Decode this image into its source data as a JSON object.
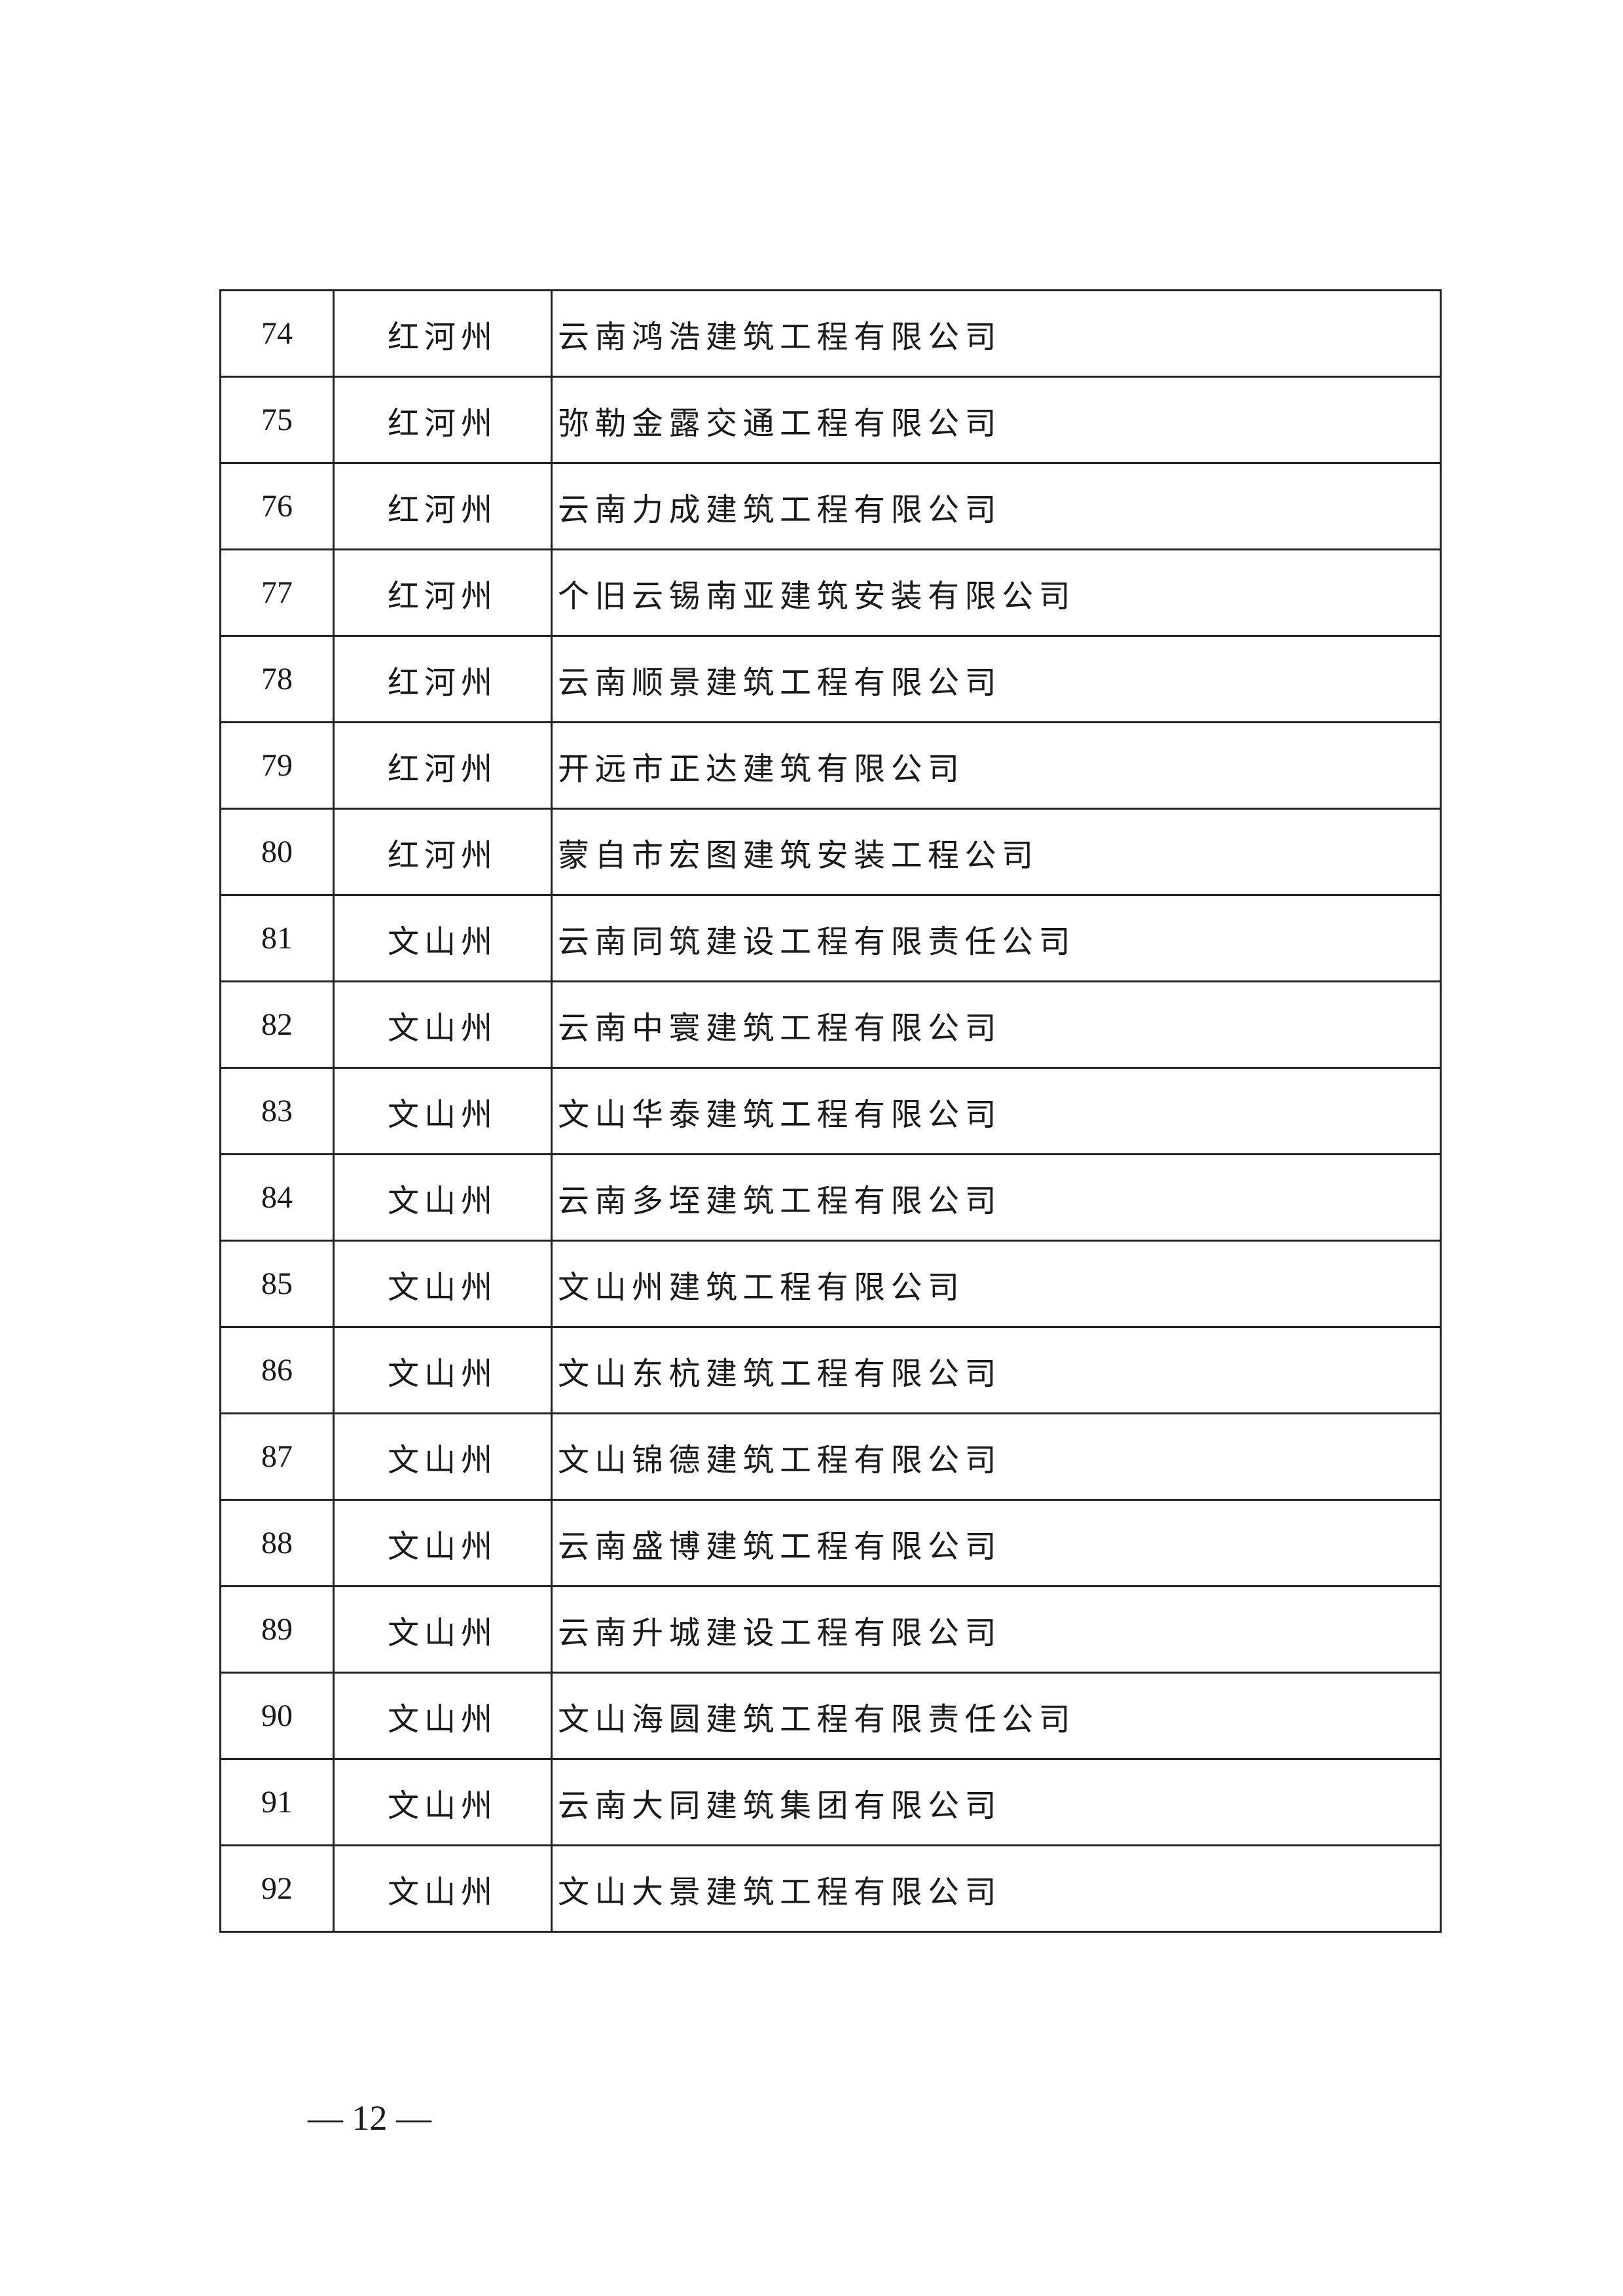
{
  "table": {
    "rows": [
      {
        "no": "74",
        "region": "红河州",
        "name": "云南鸿浩建筑工程有限公司"
      },
      {
        "no": "75",
        "region": "红河州",
        "name": "弥勒金露交通工程有限公司"
      },
      {
        "no": "76",
        "region": "红河州",
        "name": "云南力成建筑工程有限公司"
      },
      {
        "no": "77",
        "region": "红河州",
        "name": "个旧云锡南亚建筑安装有限公司"
      },
      {
        "no": "78",
        "region": "红河州",
        "name": "云南顺景建筑工程有限公司"
      },
      {
        "no": "79",
        "region": "红河州",
        "name": "开远市正达建筑有限公司"
      },
      {
        "no": "80",
        "region": "红河州",
        "name": "蒙自市宏图建筑安装工程公司"
      },
      {
        "no": "81",
        "region": "文山州",
        "name": "云南同筑建设工程有限责任公司"
      },
      {
        "no": "82",
        "region": "文山州",
        "name": "云南中寰建筑工程有限公司"
      },
      {
        "no": "83",
        "region": "文山州",
        "name": "文山华泰建筑工程有限公司"
      },
      {
        "no": "84",
        "region": "文山州",
        "name": "云南多垤建筑工程有限公司"
      },
      {
        "no": "85",
        "region": "文山州",
        "name": "文山州建筑工程有限公司"
      },
      {
        "no": "86",
        "region": "文山州",
        "name": "文山东杭建筑工程有限公司"
      },
      {
        "no": "87",
        "region": "文山州",
        "name": "文山锦德建筑工程有限公司"
      },
      {
        "no": "88",
        "region": "文山州",
        "name": "云南盛博建筑工程有限公司"
      },
      {
        "no": "89",
        "region": "文山州",
        "name": "云南升城建设工程有限公司"
      },
      {
        "no": "90",
        "region": "文山州",
        "name": "文山海圆建筑工程有限责任公司"
      },
      {
        "no": "91",
        "region": "文山州",
        "name": "云南大同建筑集团有限公司"
      },
      {
        "no": "92",
        "region": "文山州",
        "name": "文山大景建筑工程有限公司"
      }
    ]
  },
  "footer": {
    "page_number": "— 12 —"
  }
}
